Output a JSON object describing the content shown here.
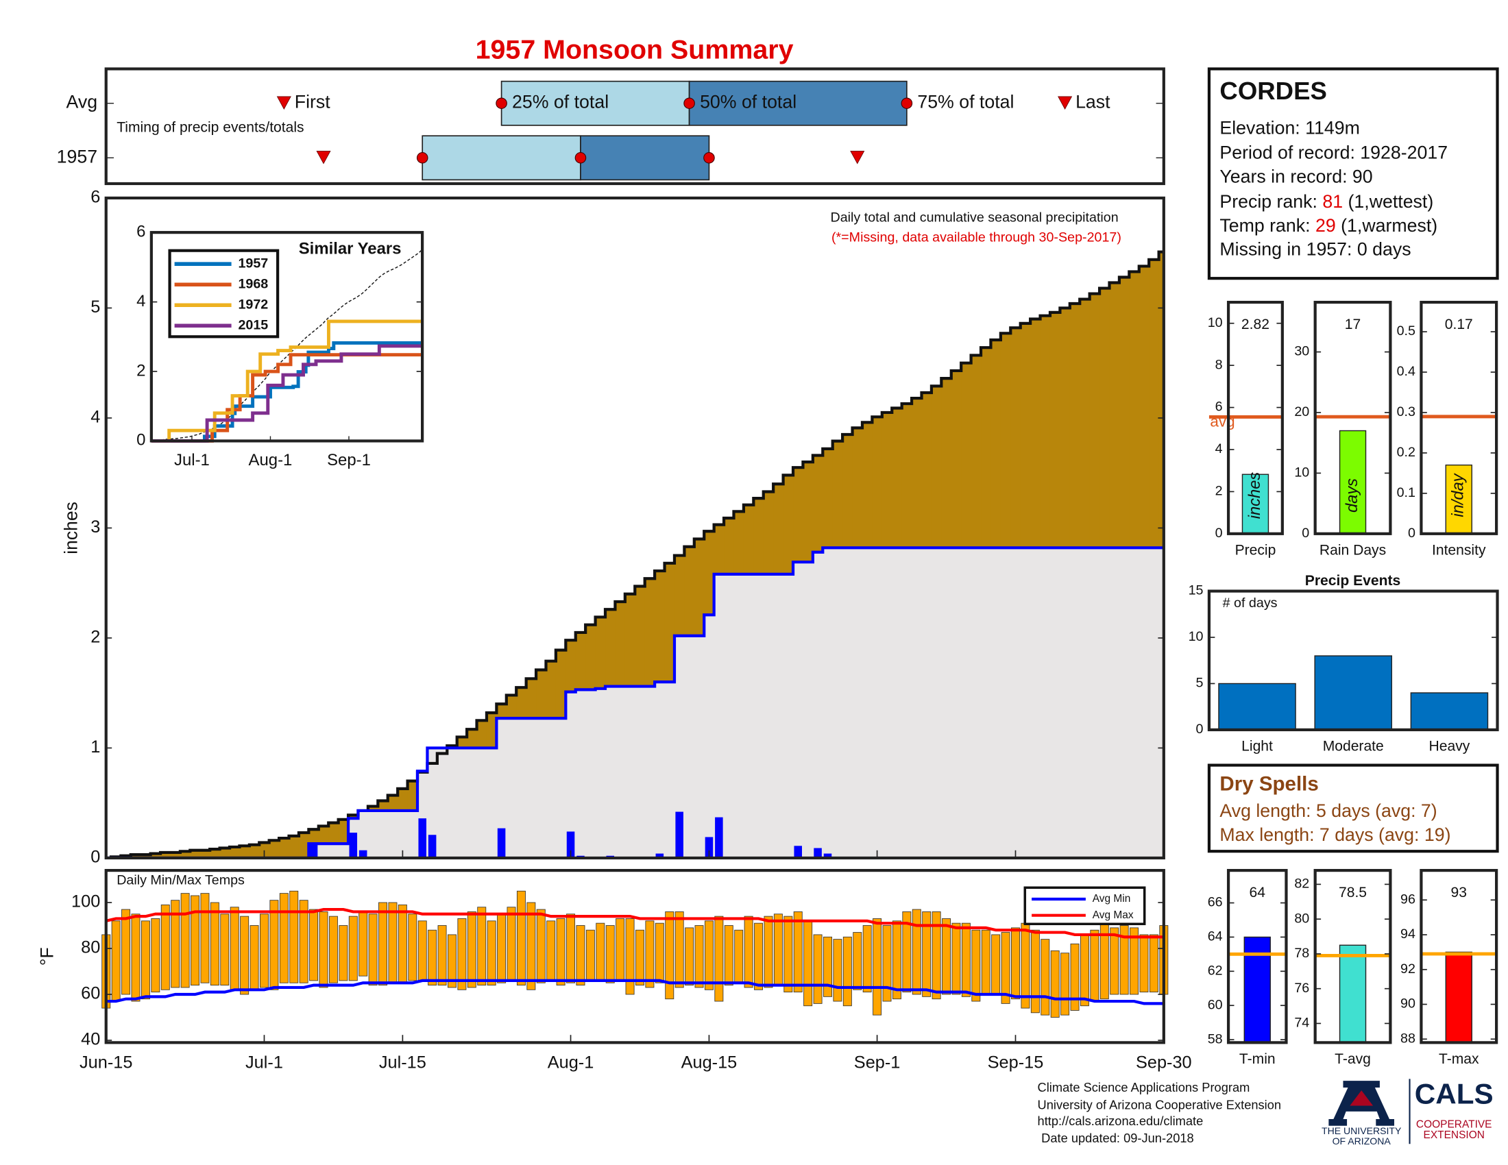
{
  "title": "1957 Monsoon Summary",
  "station": {
    "name": "CORDES",
    "elevation": "Elevation: 1149m",
    "period": "Period of record: 1928-2017",
    "years": "Years in record: 90",
    "precip_rank": {
      "label": "Precip rank:",
      "rank": 81,
      "note": "(1,wettest)"
    },
    "temp_rank": {
      "label": "Temp rank:",
      "rank": 29,
      "note": "(1,warmest)"
    },
    "missing": "Missing in 1957: 0 days"
  },
  "dry_spells": {
    "title": "Dry Spells",
    "lines": [
      "Avg length: 5 days (avg: 7)",
      "Max length: 7 days (avg: 19)"
    ]
  },
  "footer": {
    "lines": [
      "Climate Science Applications Program",
      "University of Arizona Cooperative Extension",
      "http://cals.arizona.edu/climate",
      "Date updated: 09-Jun-2018"
    ]
  },
  "logo": {
    "university": [
      "THE UNIVERSITY",
      "OF ARIZONA"
    ],
    "cals": "CALS",
    "extension": [
      "COOPERATIVE",
      "EXTENSION"
    ]
  },
  "chart_data": [
    {
      "type": "step_area",
      "title": "Daily total and cumulative seasonal precipitation",
      "subtitle": "(*=Missing, data available through 30-Sep-2017)",
      "ylabel": "inches",
      "xlim": [
        0,
        107
      ],
      "xticks": [
        {
          "value": 0,
          "label": "Jun-15"
        },
        {
          "value": 16,
          "label": "Jul-1"
        },
        {
          "value": 30,
          "label": "Jul-15"
        },
        {
          "value": 47,
          "label": "Aug-1"
        },
        {
          "value": 61,
          "label": "Aug-15"
        },
        {
          "value": 78,
          "label": "Sep-1"
        },
        {
          "value": 92,
          "label": "Sep-15"
        },
        {
          "value": 107,
          "label": "Sep-30"
        }
      ],
      "ylim": [
        0,
        6
      ],
      "yticks": [
        0,
        1,
        2,
        3,
        4,
        5,
        6
      ],
      "average": {
        "color": "#b8860b",
        "values": [
          0,
          0.01,
          0.02,
          0.03,
          0.03,
          0.04,
          0.05,
          0.05,
          0.06,
          0.07,
          0.07,
          0.08,
          0.09,
          0.1,
          0.11,
          0.12,
          0.14,
          0.16,
          0.18,
          0.2,
          0.23,
          0.26,
          0.29,
          0.32,
          0.35,
          0.39,
          0.43,
          0.47,
          0.52,
          0.57,
          0.63,
          0.7,
          0.78,
          0.86,
          0.95,
          1.02,
          1.1,
          1.17,
          1.25,
          1.32,
          1.4,
          1.48,
          1.55,
          1.63,
          1.71,
          1.79,
          1.89,
          1.98,
          2.05,
          2.12,
          2.19,
          2.26,
          2.33,
          2.4,
          2.47,
          2.54,
          2.61,
          2.68,
          2.75,
          2.83,
          2.9,
          2.97,
          3.03,
          3.09,
          3.15,
          3.21,
          3.27,
          3.33,
          3.4,
          3.48,
          3.55,
          3.6,
          3.66,
          3.72,
          3.79,
          3.85,
          3.91,
          3.96,
          4.01,
          4.05,
          4.09,
          4.13,
          4.18,
          4.23,
          4.29,
          4.36,
          4.43,
          4.5,
          4.57,
          4.64,
          4.71,
          4.77,
          4.82,
          4.86,
          4.9,
          4.93,
          4.96,
          5.0,
          5.04,
          5.08,
          5.13,
          5.18,
          5.23,
          5.28,
          5.33,
          5.38,
          5.44,
          5.51
        ]
      },
      "daily": {
        "color": "#0000ff",
        "values": [
          0,
          0,
          0,
          0,
          0,
          0,
          0,
          0,
          0,
          0,
          0,
          0,
          0,
          0,
          0,
          0,
          0,
          0,
          0,
          0,
          0,
          0.13,
          0,
          0,
          0,
          0.23,
          0.07,
          0,
          0,
          0,
          0,
          0,
          0.36,
          0.21,
          0,
          0,
          0,
          0,
          0,
          0,
          0.27,
          0,
          0,
          0,
          0,
          0,
          0,
          0.24,
          0.02,
          0,
          0.01,
          0.02,
          0,
          0,
          0,
          0,
          0.04,
          0,
          0.42,
          0,
          0,
          0.19,
          0.37,
          0,
          0,
          0,
          0,
          0,
          0,
          0,
          0.11,
          0,
          0.09,
          0.04,
          0,
          0,
          0,
          0,
          0,
          0,
          0,
          0,
          0,
          0,
          0,
          0,
          0,
          0,
          0,
          0,
          0,
          0,
          0,
          0,
          0,
          0,
          0,
          0,
          0,
          0,
          0,
          0,
          0,
          0,
          0,
          0,
          0,
          0
        ]
      },
      "cumulative_fill": "#e8e6e6"
    },
    {
      "type": "line",
      "title": "Similar Years",
      "xlim": [
        0,
        107
      ],
      "xticks": [
        {
          "value": 16,
          "label": "Jul-1"
        },
        {
          "value": 47,
          "label": "Aug-1"
        },
        {
          "value": 78,
          "label": "Sep-1"
        }
      ],
      "ylim": [
        0,
        6
      ],
      "yticks": [
        0,
        2,
        4,
        6
      ],
      "series": [
        {
          "name": "1957",
          "color": "#0072bd",
          "x": [
            0,
            21,
            25,
            32,
            33,
            40,
            47,
            56,
            58,
            61,
            62,
            70,
            72,
            107
          ],
          "values": [
            0,
            0.13,
            0.43,
            0.79,
            1.0,
            1.27,
            1.54,
            1.57,
            1.99,
            2.18,
            2.55,
            2.66,
            2.82,
            2.82
          ]
        },
        {
          "name": "1968",
          "color": "#d95319",
          "x": [
            0,
            24,
            30,
            35,
            40,
            45,
            50,
            55,
            107
          ],
          "values": [
            0,
            0.3,
            0.9,
            1.3,
            1.9,
            2.0,
            2.2,
            2.48,
            2.48
          ]
        },
        {
          "name": "1972",
          "color": "#edb120",
          "x": [
            0,
            7,
            17,
            25,
            32,
            38,
            43,
            50,
            55,
            70,
            107
          ],
          "values": [
            0,
            0.3,
            0.3,
            0.8,
            1.3,
            2.0,
            2.5,
            2.6,
            2.7,
            3.44,
            3.44
          ]
        },
        {
          "name": "2015",
          "color": "#7e2f8e",
          "x": [
            0,
            22,
            30,
            40,
            46,
            52,
            60,
            65,
            75,
            90,
            107
          ],
          "values": [
            0,
            0.6,
            0.6,
            0.8,
            1.6,
            1.9,
            2.2,
            2.3,
            2.5,
            2.73,
            2.73
          ]
        }
      ]
    },
    {
      "type": "range_bar",
      "title": "Daily Min/Max Temps",
      "ylabel": "°F",
      "ylim": [
        39,
        114
      ],
      "yticks": [
        40,
        60,
        80,
        100
      ],
      "color": "#ffa500",
      "legend": "upper right",
      "max": [
        86,
        92,
        97,
        95,
        92,
        93,
        99,
        101,
        104,
        103,
        104,
        100,
        95,
        98,
        94,
        90,
        95,
        101,
        104,
        105,
        101,
        97,
        96,
        94,
        90,
        94,
        96,
        95,
        100,
        100,
        99,
        95,
        92,
        88,
        90,
        86,
        93,
        96,
        98,
        92,
        95,
        98,
        105,
        100,
        97,
        92,
        93,
        95,
        90,
        88,
        91,
        90,
        93,
        93,
        88,
        92,
        91,
        96,
        96,
        89,
        90,
        92,
        94,
        90,
        88,
        94,
        91,
        94,
        95,
        94,
        96,
        92,
        86,
        85,
        84,
        85,
        87,
        90,
        93,
        90,
        92,
        96,
        97,
        96,
        96,
        93,
        91,
        91,
        88,
        88,
        86,
        87,
        89,
        91,
        88,
        84,
        79,
        78,
        82,
        86,
        88,
        91,
        89,
        90,
        89,
        86,
        86,
        90
      ],
      "min": [
        54,
        57,
        60,
        57,
        58,
        61,
        62,
        63,
        63,
        64,
        65,
        64,
        64,
        62,
        60,
        62,
        63,
        62,
        65,
        65,
        65,
        66,
        63,
        65,
        66,
        66,
        68,
        64,
        64,
        65,
        65,
        66,
        66,
        64,
        64,
        63,
        62,
        63,
        64,
        64,
        65,
        66,
        64,
        62,
        65,
        66,
        64,
        65,
        64,
        66,
        66,
        65,
        66,
        60,
        64,
        63,
        65,
        58,
        63,
        64,
        63,
        62,
        57,
        64,
        65,
        63,
        62,
        63,
        64,
        61,
        61,
        55,
        56,
        59,
        57,
        55,
        62,
        61,
        51,
        57,
        58,
        61,
        60,
        59,
        58,
        60,
        60,
        59,
        57,
        60,
        60,
        56,
        58,
        54,
        52,
        51,
        50,
        51,
        53,
        55,
        57,
        58,
        60,
        60,
        60,
        61,
        61,
        60
      ],
      "series": [
        {
          "name": "Avg Min",
          "color": "#0000ff",
          "values": [
            57,
            57,
            58,
            58,
            59,
            59,
            59,
            60,
            60,
            60,
            61,
            61,
            61,
            62,
            62,
            62,
            62,
            63,
            63,
            63,
            63,
            64,
            64,
            64,
            64,
            64,
            65,
            65,
            65,
            65,
            65,
            65,
            66,
            66,
            66,
            66,
            66,
            66,
            66,
            66,
            66,
            66,
            66,
            66,
            66,
            66,
            66,
            66,
            66,
            66,
            66,
            66,
            66,
            66,
            66,
            66,
            66,
            65,
            65,
            65,
            65,
            65,
            65,
            65,
            65,
            65,
            64,
            64,
            64,
            64,
            64,
            64,
            64,
            64,
            63,
            63,
            63,
            63,
            63,
            63,
            62,
            62,
            62,
            62,
            61,
            61,
            61,
            61,
            60,
            60,
            60,
            60,
            59,
            59,
            59,
            59,
            58,
            58,
            58,
            58,
            57,
            57,
            57,
            57,
            57,
            56,
            56,
            56
          ]
        },
        {
          "name": "Avg Max",
          "color": "#ff0000",
          "values": [
            92,
            93,
            93,
            94,
            94,
            95,
            95,
            95,
            95,
            96,
            96,
            96,
            96,
            96,
            96,
            96,
            96,
            96,
            96,
            96,
            96,
            96,
            97,
            97,
            97,
            96,
            96,
            96,
            96,
            96,
            96,
            96,
            95,
            95,
            95,
            95,
            95,
            95,
            95,
            95,
            95,
            95,
            95,
            95,
            95,
            94,
            94,
            94,
            94,
            94,
            94,
            94,
            94,
            94,
            93,
            93,
            93,
            93,
            93,
            93,
            93,
            93,
            93,
            93,
            93,
            93,
            93,
            92,
            92,
            92,
            92,
            92,
            92,
            92,
            92,
            92,
            92,
            92,
            91,
            91,
            91,
            91,
            90,
            90,
            90,
            90,
            89,
            89,
            89,
            89,
            88,
            88,
            88,
            88,
            87,
            87,
            87,
            87,
            86,
            86,
            86,
            86,
            86,
            85,
            85,
            85,
            85,
            85
          ]
        }
      ]
    },
    {
      "type": "timing",
      "label": "Timing of precip events/totals",
      "markers": [
        "First",
        "25% of total",
        "50% of total",
        "75% of total",
        "Last"
      ],
      "colors": [
        "#add8e6",
        "#4682b4"
      ],
      "marker_color": "#e00000",
      "series": [
        {
          "name": "Avg",
          "values": [
            18,
            40,
            59,
            81,
            97
          ]
        },
        {
          "name": "1957",
          "values": [
            22,
            32,
            48,
            61,
            76
          ]
        }
      ]
    },
    {
      "type": "single_bar",
      "label": "Precip",
      "unit": "inches",
      "value": 2.82,
      "avg": 5.55,
      "avg_label": "avg",
      "color": "#40e0d0",
      "avg_color": "#e05a1e",
      "ylim": [
        0,
        11
      ],
      "yticks": [
        0,
        2,
        4,
        6,
        8,
        10
      ]
    },
    {
      "type": "single_bar",
      "label": "Rain Days",
      "unit": "days",
      "value": 17,
      "avg": 19.3,
      "color": "#7cfc00",
      "avg_color": "#e05a1e",
      "ylim": [
        0,
        38.2
      ],
      "yticks": [
        0,
        10,
        20,
        30
      ]
    },
    {
      "type": "single_bar",
      "label": "Intensity",
      "unit": "in/day",
      "value": 0.17,
      "avg": 0.29,
      "color": "#ffd700",
      "avg_color": "#e05a1e",
      "ylim": [
        0,
        0.573
      ],
      "yticks": [
        0,
        0.1,
        0.2,
        0.3,
        0.4,
        0.5
      ]
    },
    {
      "type": "bar",
      "title": "Precip Events",
      "ylabel": "# of days",
      "categories": [
        "Light",
        "Moderate",
        "Heavy"
      ],
      "values": [
        5,
        8,
        4
      ],
      "color": "#0070c0",
      "ylim": [
        0,
        15
      ],
      "yticks": [
        0,
        5,
        10,
        15
      ]
    },
    {
      "type": "single_bar",
      "label": "T-min",
      "value": 64,
      "avg": 63,
      "color": "#0000ff",
      "avg_color": "#ffa500",
      "ylim": [
        57.83,
        67.9
      ],
      "yticks": [
        58,
        60,
        62,
        64,
        66
      ]
    },
    {
      "type": "single_bar",
      "label": "T-avg",
      "value": 78.5,
      "avg": 77.9,
      "color": "#40e0d0",
      "avg_color": "#ffa500",
      "ylim": [
        72.9,
        82.8
      ],
      "yticks": [
        74,
        76,
        78,
        80,
        82
      ]
    },
    {
      "type": "single_bar",
      "label": "T-max",
      "value": 93,
      "avg": 92.9,
      "color": "#ff0000",
      "avg_color": "#ffa500",
      "ylim": [
        87.8,
        97.7
      ],
      "yticks": [
        88,
        90,
        92,
        94,
        96
      ]
    }
  ]
}
